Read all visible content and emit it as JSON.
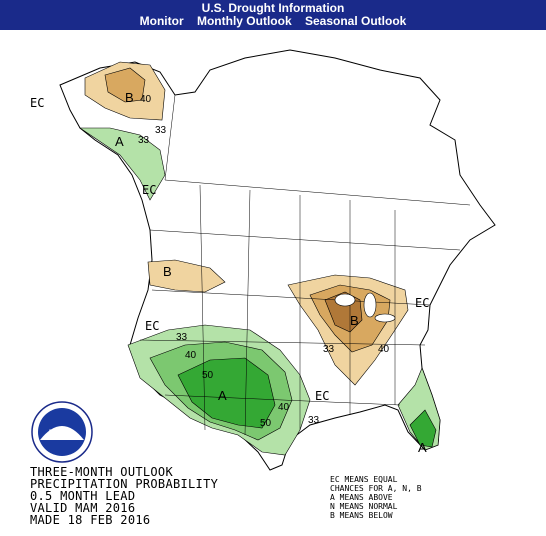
{
  "header": {
    "title": "U.S. Drought Information",
    "nav": [
      "Monitor",
      "Monthly Outlook",
      "Seasonal Outlook"
    ]
  },
  "map": {
    "caption": [
      "THREE-MONTH OUTLOOK",
      "PRECIPITATION PROBABILITY",
      "0.5 MONTH LEAD",
      "VALID MAM 2016",
      "MADE 18 FEB 2016"
    ],
    "legend": [
      "EC MEANS EQUAL",
      "CHANCES FOR A, N, B",
      "A MEANS ABOVE",
      "N MEANS NORMAL",
      "B MEANS BELOW"
    ],
    "region_labels": {
      "ec": "EC",
      "above": "A",
      "below": "B"
    },
    "contours": [
      "33",
      "40",
      "50"
    ],
    "logo_text": "NOAA",
    "colors": {
      "header_bg": "#1a2a8a",
      "above_33": "#b4e2a8",
      "above_40": "#7cc870",
      "above_50": "#34a834",
      "below_33": "#f0d4a0",
      "below_40": "#d8a860",
      "below_50": "#b07838"
    }
  }
}
